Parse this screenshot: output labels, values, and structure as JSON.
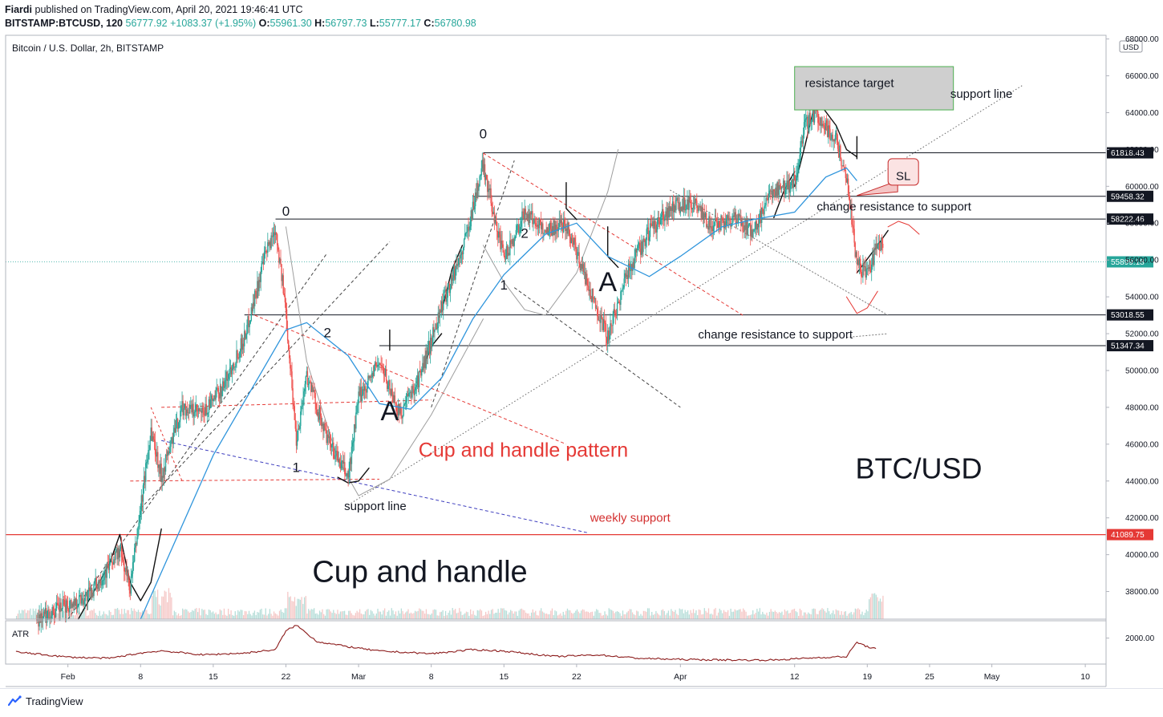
{
  "header": {
    "author": "Fiardi",
    "published": "published on TradingView.com, April 20, 2021 19:46:41 UTC",
    "symbol": "BITSTAMP:BTCUSD, 120",
    "last": "56777.92",
    "change": "+1083.37 (+1.95%)",
    "o_label": "O:",
    "o": "55961.30",
    "h_label": "H:",
    "h": "56797.73",
    "l_label": "L:",
    "l": "55777.17",
    "c_label": "C:",
    "c": "56780.98"
  },
  "footer": {
    "brand": "TradingView"
  },
  "colors": {
    "up": "#26a69a",
    "down": "#ef5350",
    "ma": "#2f95dc",
    "weekly": "#e53935",
    "annot_red": "#e53935",
    "box_green": "#4caf50",
    "box_fill": "#cfcfcf"
  },
  "chart_data": {
    "type": "candlestick",
    "title": "Bitcoin / U.S. Dollar, 2h, BITSTAMP",
    "currency": "USD",
    "ylim": [
      36500,
      68200
    ],
    "y_ticks": [
      38000,
      40000,
      42000,
      44000,
      46000,
      48000,
      50000,
      52000,
      54000,
      56000,
      58000,
      60000,
      62000,
      64000,
      66000,
      68000
    ],
    "y_tick_labels": [
      "38000.00",
      "40000.00",
      "42000.00",
      "44000.00",
      "46000.00",
      "48000.00",
      "50000.00",
      "52000.00",
      "54000.00",
      "56000.00",
      "58000.00",
      "60000.00",
      "62000.00",
      "64000.00",
      "66000.00",
      "68000.00"
    ],
    "x_range": [
      "2021-01-26",
      "2021-05-12"
    ],
    "x_ticks": [
      {
        "date": "2021-02-01",
        "label": "Feb"
      },
      {
        "date": "2021-02-08",
        "label": "8"
      },
      {
        "date": "2021-02-15",
        "label": "15"
      },
      {
        "date": "2021-02-22",
        "label": "22"
      },
      {
        "date": "2021-03-01",
        "label": "Mar"
      },
      {
        "date": "2021-03-08",
        "label": "8"
      },
      {
        "date": "2021-03-15",
        "label": "15"
      },
      {
        "date": "2021-03-22",
        "label": "22"
      },
      {
        "date": "2021-04-01",
        "label": "Apr"
      },
      {
        "date": "2021-04-12",
        "label": "12"
      },
      {
        "date": "2021-04-19",
        "label": "19"
      },
      {
        "date": "2021-04-25",
        "label": "25"
      },
      {
        "date": "2021-05-01",
        "label": "May"
      },
      {
        "date": "2021-05-10",
        "label": "10"
      }
    ],
    "price_path": [
      [
        "2021-01-29",
        36500
      ],
      [
        "2021-02-03",
        37800
      ],
      [
        "2021-02-06",
        40200
      ],
      [
        "2021-02-07",
        38200
      ],
      [
        "2021-02-09",
        46800
      ],
      [
        "2021-02-10",
        44300
      ],
      [
        "2021-02-12",
        48000
      ],
      [
        "2021-02-14",
        47600
      ],
      [
        "2021-02-16",
        49200
      ],
      [
        "2021-02-18",
        51800
      ],
      [
        "2021-02-20",
        56200
      ],
      [
        "2021-02-21",
        57800
      ],
      [
        "2021-02-22",
        53200
      ],
      [
        "2021-02-23",
        46200
      ],
      [
        "2021-02-24",
        49800
      ],
      [
        "2021-02-26",
        46200
      ],
      [
        "2021-02-28",
        44200
      ],
      [
        "2021-03-01",
        48500
      ],
      [
        "2021-03-03",
        50500
      ],
      [
        "2021-03-05",
        47600
      ],
      [
        "2021-03-07",
        49800
      ],
      [
        "2021-03-09",
        53500
      ],
      [
        "2021-03-11",
        56500
      ],
      [
        "2021-03-13",
        61200
      ],
      [
        "2021-03-15",
        56000
      ],
      [
        "2021-03-17",
        58600
      ],
      [
        "2021-03-19",
        57600
      ],
      [
        "2021-03-21",
        58000
      ],
      [
        "2021-03-23",
        54800
      ],
      [
        "2021-03-25",
        51800
      ],
      [
        "2021-03-27",
        55500
      ],
      [
        "2021-03-29",
        57500
      ],
      [
        "2021-03-31",
        58800
      ],
      [
        "2021-04-02",
        59200
      ],
      [
        "2021-04-04",
        57800
      ],
      [
        "2021-04-06",
        58300
      ],
      [
        "2021-04-08",
        57500
      ],
      [
        "2021-04-10",
        59800
      ],
      [
        "2021-04-12",
        60200
      ],
      [
        "2021-04-13",
        63300
      ],
      [
        "2021-04-14",
        64000
      ],
      [
        "2021-04-16",
        62500
      ],
      [
        "2021-04-17",
        60500
      ],
      [
        "2021-04-18",
        55800
      ],
      [
        "2021-04-19",
        55200
      ],
      [
        "2021-04-20",
        56780
      ]
    ],
    "moving_average": [
      [
        "2021-02-08",
        36500
      ],
      [
        "2021-02-15",
        45400
      ],
      [
        "2021-02-22",
        52200
      ],
      [
        "2021-02-24",
        52600
      ],
      [
        "2021-02-28",
        50800
      ],
      [
        "2021-03-03",
        48200
      ],
      [
        "2021-03-06",
        47900
      ],
      [
        "2021-03-09",
        49600
      ],
      [
        "2021-03-12",
        52800
      ],
      [
        "2021-03-15",
        55200
      ],
      [
        "2021-03-19",
        57400
      ],
      [
        "2021-03-22",
        58000
      ],
      [
        "2021-03-25",
        56200
      ],
      [
        "2021-03-29",
        55100
      ],
      [
        "2021-04-01",
        56200
      ],
      [
        "2021-04-05",
        57800
      ],
      [
        "2021-04-08",
        58200
      ],
      [
        "2021-04-12",
        58600
      ],
      [
        "2021-04-15",
        60500
      ],
      [
        "2021-04-17",
        61000
      ],
      [
        "2021-04-18",
        60300
      ]
    ],
    "price_levels": [
      {
        "value": 61818.43,
        "label": "61818.43"
      },
      {
        "value": 59458.32,
        "label": "59458.32"
      },
      {
        "value": 58222.46,
        "label": "58222.46"
      },
      {
        "value": 53018.55,
        "label": "53018.55"
      },
      {
        "value": 51347.34,
        "label": "51347.34"
      }
    ],
    "weekly_support": {
      "value": 41089.75,
      "label": "41089.75"
    },
    "current_price": {
      "value": 55899.18,
      "label": "55899.18"
    },
    "annotations": [
      {
        "text": "resistance target",
        "date": "2021-04-12",
        "price": 65400
      },
      {
        "text": "support line",
        "date": "2021-04-23",
        "price": 64800
      },
      {
        "text": "SL",
        "date": "2021-04-22",
        "price": 60600
      },
      {
        "text": "change resistance to support",
        "date": "2021-04-20",
        "price": 58900
      },
      {
        "text": "change resistance to support",
        "date": "2021-04-05",
        "price": 52000
      },
      {
        "text": "Cup and handle pattern",
        "date": "2021-03-14",
        "price": 45700
      },
      {
        "text": "BTC/USD",
        "date": "2021-04-18",
        "price": 44700
      },
      {
        "text": "weekly support",
        "date": "2021-03-27",
        "price": 42000
      },
      {
        "text": "support line",
        "date": "2021-03-02",
        "price": 42600
      },
      {
        "text": "Cup and handle",
        "date": "2021-02-28",
        "price": 39100
      }
    ],
    "wave_labels": [
      "0",
      "0",
      "1",
      "2",
      "1",
      "2",
      "A",
      "A"
    ],
    "atr": {
      "label": "ATR",
      "tick": "2000.00",
      "path": [
        [
          "2021-01-27",
          1520
        ],
        [
          "2021-02-01",
          1340
        ],
        [
          "2021-02-05",
          1300
        ],
        [
          "2021-02-08",
          1480
        ],
        [
          "2021-02-10",
          1560
        ],
        [
          "2021-02-14",
          1420
        ],
        [
          "2021-02-18",
          1480
        ],
        [
          "2021-02-21",
          1600
        ],
        [
          "2021-02-22",
          2250
        ],
        [
          "2021-02-23",
          2450
        ],
        [
          "2021-02-25",
          1880
        ],
        [
          "2021-02-28",
          1700
        ],
        [
          "2021-03-03",
          1550
        ],
        [
          "2021-03-08",
          1460
        ],
        [
          "2021-03-12",
          1600
        ],
        [
          "2021-03-15",
          1550
        ],
        [
          "2021-03-20",
          1360
        ],
        [
          "2021-03-24",
          1420
        ],
        [
          "2021-03-28",
          1300
        ],
        [
          "2021-04-01",
          1260
        ],
        [
          "2021-04-06",
          1240
        ],
        [
          "2021-04-10",
          1240
        ],
        [
          "2021-04-14",
          1320
        ],
        [
          "2021-04-17",
          1360
        ],
        [
          "2021-04-18",
          1860
        ],
        [
          "2021-04-19",
          1700
        ],
        [
          "2021-04-20",
          1620
        ]
      ]
    }
  }
}
